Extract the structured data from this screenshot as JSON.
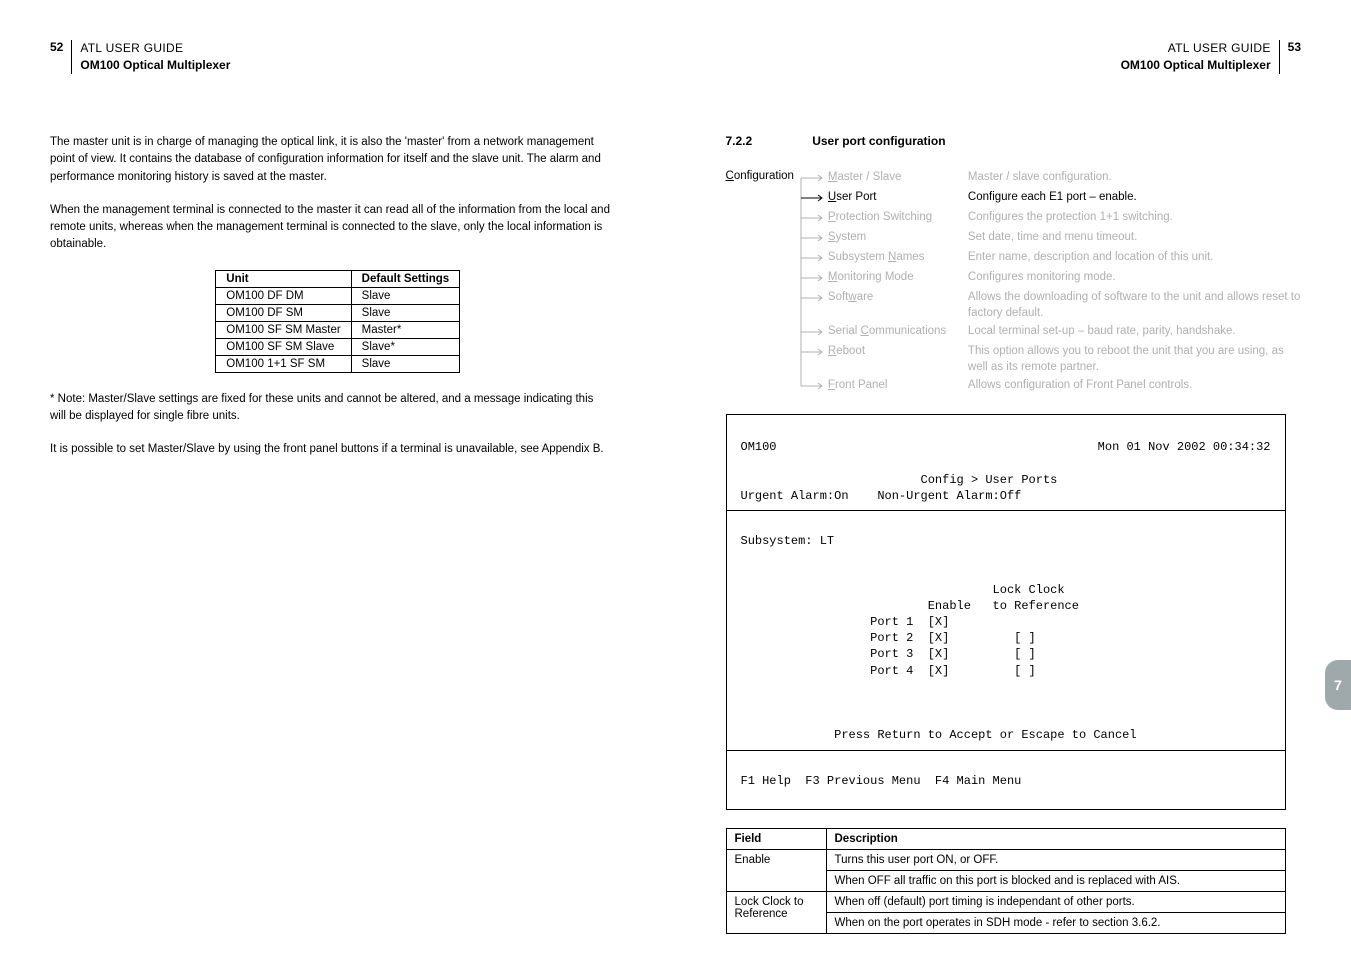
{
  "left": {
    "header": {
      "page": "52",
      "line1": "ATL USER GUIDE",
      "line2": "OM100 Optical Multiplexer"
    },
    "para1": "The master unit is in charge of managing the optical link, it is also the 'master' from a network management point of view. It contains the database of configuration information for itself and the slave unit.  The alarm and performance monitoring history is saved at the master.",
    "para2": "When the management terminal is connected to the master it can read all of the information from the local and remote units, whereas when the management terminal is connected to the slave, only the local information is obtainable.",
    "table": {
      "headers": [
        "Unit",
        "Default Settings"
      ],
      "rows": [
        [
          "OM100 DF DM",
          "Slave"
        ],
        [
          "OM100 DF SM",
          "Slave"
        ],
        [
          "OM100 SF SM Master",
          "Master*"
        ],
        [
          "OM100 SF SM Slave",
          "Slave*"
        ],
        [
          "OM100 1+1 SF SM",
          "Slave"
        ]
      ]
    },
    "para3": "* Note: Master/Slave settings are fixed for these units and cannot be altered, and a message indicating this will be displayed for single fibre units.",
    "para4": "It is possible to set Master/Slave by using the front panel buttons if a terminal is unavailable, see Appendix B."
  },
  "right": {
    "header": {
      "page": "53",
      "line1": "ATL USER GUIDE",
      "line2": "OM100 Optical Multiplexer"
    },
    "secnum": "7.2.2",
    "sectitle": "User port configuration",
    "config_label_pre": "C",
    "config_label_rest": "onfiguration",
    "tree": [
      {
        "u": "M",
        "rest": "aster / Slave",
        "desc": "Master / slave configuration.",
        "active": false,
        "tall": 20
      },
      {
        "u": "U",
        "rest": "ser Port",
        "desc": "Configure each E1 port – enable.",
        "active": true,
        "tall": 20
      },
      {
        "u": "P",
        "rest": "rotection Switching",
        "desc": "Configures the protection 1+1 switching.",
        "active": false,
        "tall": 20
      },
      {
        "u": "S",
        "rest": "ystem",
        "desc": "Set date, time and menu timeout.",
        "active": false,
        "tall": 20
      },
      {
        "u": "N",
        "pre": "Subsystem ",
        "rest": "ames",
        "desc": "Enter name, description and location of this unit.",
        "active": false,
        "tall": 20
      },
      {
        "u": "M",
        "rest": "onitoring Mode",
        "desc": "Configures monitoring mode.",
        "active": false,
        "tall": 20
      },
      {
        "u": "w",
        "pre": "Soft",
        "rest": "are",
        "desc": "Allows the downloading of software to the unit and allows reset to factory default.",
        "active": false,
        "tall": 34
      },
      {
        "u": "C",
        "pre": "Serial ",
        "rest": "ommunications",
        "desc": "Local terminal set-up – baud rate, parity, handshake.",
        "active": false,
        "tall": 20
      },
      {
        "u": "R",
        "rest": "eboot",
        "desc": "This option allows you to reboot the unit that you are using, as well as its remote partner.",
        "active": false,
        "tall": 34
      },
      {
        "u": "F",
        "rest": "ront Panel",
        "desc": "Allows configuration of Front Panel controls.",
        "active": false,
        "tall": 20,
        "last": true
      }
    ],
    "terminal": {
      "l1a": "OM100",
      "l1b": "Mon 01 Nov 2002 00:34:32",
      "l2": "                         Config > User Ports",
      "l3": "Urgent Alarm:On    Non-Urgent Alarm:Off",
      "l4": "Subsystem: LT",
      "l5": "                                   Lock Clock",
      "l6": "                          Enable   to Reference",
      "l7": "                  Port 1  [X]",
      "l8": "                  Port 2  [X]         [ ]",
      "l9": "                  Port 3  [X]         [ ]",
      "l10": "                  Port 4  [X]         [ ]",
      "l11": "             Press Return to Accept or Escape to Cancel",
      "l12": "F1 Help  F3 Previous Menu  F4 Main Menu"
    },
    "field_table": {
      "headers": [
        "Field",
        "Description"
      ],
      "rows": [
        [
          "Enable",
          "Turns this user port ON, or OFF.\nWhen OFF all traffic on this port is blocked and is replaced with AIS."
        ],
        [
          "Lock Clock to Reference",
          "When off (default) port timing is independant of other ports.\nWhen on the port operates in SDH mode - refer to section 3.6.2."
        ]
      ]
    },
    "tab": "7"
  },
  "colors": {
    "grey": "#b0b0b0",
    "tab_bg": "#9fa8aa",
    "text": "#000000"
  }
}
